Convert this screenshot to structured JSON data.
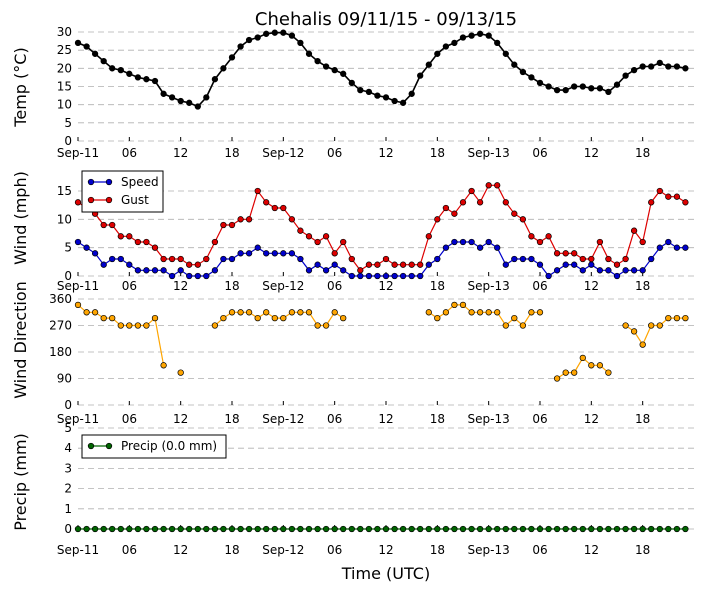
{
  "title": "Chehalis 09/11/15 - 09/13/15",
  "xlabel": "Time (UTC)",
  "x_tick_labels": [
    "Sep-11",
    "06",
    "12",
    "18",
    "Sep-12",
    "06",
    "12",
    "18",
    "Sep-13",
    "06",
    "12",
    "18"
  ],
  "colors": {
    "temp": "#000000",
    "speed": "#0000cc",
    "gust": "#dd0000",
    "direction": "#ffa500",
    "precip": "#006400"
  },
  "chart_data": [
    {
      "type": "line",
      "ylabel": "Temp (°C)",
      "ylim": [
        0,
        30
      ],
      "yticks": [
        "0",
        "5",
        "10",
        "15",
        "20",
        "25",
        "30"
      ],
      "grid": true,
      "x": [
        0,
        1,
        2,
        3,
        4,
        5,
        6,
        7,
        8,
        9,
        10,
        11,
        12,
        13,
        14,
        15,
        16,
        17,
        18,
        19,
        20,
        21,
        22,
        23,
        24,
        25,
        26,
        27,
        28,
        29,
        30,
        31,
        32,
        33,
        34,
        35,
        36,
        37,
        38,
        39,
        40,
        41,
        42,
        43,
        44,
        45,
        46,
        47,
        48,
        49,
        50,
        51,
        52,
        53,
        54,
        55,
        56,
        57,
        58,
        59,
        60,
        61,
        62,
        63,
        64,
        65,
        66,
        67,
        68,
        69,
        70,
        71
      ],
      "series": [
        {
          "values": [
            27,
            26,
            24,
            22,
            20,
            19.5,
            18.5,
            17.5,
            17,
            16.5,
            13,
            12,
            11,
            10.5,
            9.5,
            12,
            17,
            20,
            23,
            26,
            27.8,
            28.5,
            29.5,
            29.8,
            29.8,
            29,
            27,
            24,
            22,
            20.5,
            19.5,
            18.5,
            16,
            14,
            13.5,
            12.5,
            12,
            11,
            10.5,
            13,
            18,
            21,
            24,
            26,
            27,
            28.5,
            29,
            29.5,
            29,
            27,
            24,
            21,
            19,
            17.5,
            16,
            15,
            14,
            14,
            15,
            15,
            14.5,
            14.5,
            13.5,
            15.5,
            18,
            19.5,
            20.5,
            20.5,
            21.5,
            20.5,
            20.5,
            20
          ]
        }
      ]
    },
    {
      "type": "line",
      "ylabel": "Wind (mph)",
      "ylim": [
        0,
        18
      ],
      "yticks": [
        "0",
        "5",
        "10",
        "15"
      ],
      "grid": true,
      "legend_position": "top-left",
      "x": [
        0,
        1,
        2,
        3,
        4,
        5,
        6,
        7,
        8,
        9,
        10,
        11,
        12,
        13,
        14,
        15,
        16,
        17,
        18,
        19,
        20,
        21,
        22,
        23,
        24,
        25,
        26,
        27,
        28,
        29,
        30,
        31,
        32,
        33,
        34,
        35,
        36,
        37,
        38,
        39,
        40,
        41,
        42,
        43,
        44,
        45,
        46,
        47,
        48,
        49,
        50,
        51,
        52,
        53,
        54,
        55,
        56,
        57,
        58,
        59,
        60,
        61,
        62,
        63,
        64,
        65,
        66,
        67,
        68,
        69,
        70,
        71
      ],
      "series": [
        {
          "name": "Speed",
          "values": [
            6,
            5,
            4,
            2,
            3,
            3,
            2,
            1,
            1,
            1,
            1,
            0,
            1,
            0,
            0,
            0,
            1,
            3,
            3,
            4,
            4,
            5,
            4,
            4,
            4,
            4,
            3,
            1,
            2,
            1,
            2,
            1,
            0,
            0,
            0,
            0,
            0,
            0,
            0,
            0,
            0,
            2,
            3,
            5,
            6,
            6,
            6,
            5,
            6,
            5,
            2,
            3,
            3,
            3,
            2,
            0,
            1,
            2,
            2,
            1,
            2,
            1,
            1,
            0,
            1,
            1,
            1,
            3,
            5,
            6,
            5,
            5
          ]
        },
        {
          "name": "Gust",
          "values": [
            13,
            12,
            11,
            9,
            9,
            7,
            7,
            6,
            6,
            5,
            3,
            3,
            3,
            2,
            2,
            3,
            6,
            9,
            9,
            10,
            10,
            15,
            13,
            12,
            12,
            10,
            8,
            7,
            6,
            7,
            4,
            6,
            3,
            1,
            2,
            2,
            3,
            2,
            2,
            2,
            2,
            7,
            10,
            12,
            11,
            13,
            15,
            13,
            16,
            16,
            13,
            11,
            10,
            7,
            6,
            7,
            4,
            4,
            4,
            3,
            3,
            6,
            3,
            2,
            3,
            8,
            6,
            13,
            15,
            14,
            14,
            13
          ]
        }
      ]
    },
    {
      "type": "scatter",
      "ylabel": "Wind Direction",
      "ylim": [
        0,
        360
      ],
      "yticks": [
        "0",
        "90",
        "180",
        "270",
        "360"
      ],
      "grid": true,
      "x": [
        0,
        1,
        2,
        3,
        4,
        5,
        6,
        7,
        8,
        9,
        10,
        11,
        12,
        13,
        14,
        15,
        16,
        17,
        18,
        19,
        20,
        21,
        22,
        23,
        24,
        25,
        26,
        27,
        28,
        29,
        30,
        31,
        32,
        33,
        34,
        35,
        36,
        37,
        38,
        39,
        40,
        41,
        42,
        43,
        44,
        45,
        46,
        47,
        48,
        49,
        50,
        51,
        52,
        53,
        54,
        55,
        56,
        57,
        58,
        59,
        60,
        61,
        62,
        63,
        64,
        65,
        66,
        67,
        68,
        69,
        70,
        71
      ],
      "series": [
        {
          "values": [
            340,
            315,
            315,
            295,
            295,
            270,
            270,
            270,
            270,
            295,
            135,
            null,
            110,
            null,
            null,
            null,
            270,
            295,
            315,
            315,
            315,
            295,
            315,
            295,
            295,
            315,
            315,
            315,
            270,
            270,
            315,
            295,
            null,
            null,
            null,
            null,
            null,
            null,
            null,
            null,
            null,
            315,
            295,
            315,
            340,
            340,
            315,
            315,
            315,
            315,
            270,
            295,
            270,
            315,
            315,
            null,
            90,
            110,
            110,
            160,
            135,
            135,
            110,
            null,
            270,
            250,
            205,
            270,
            270,
            295,
            295,
            295
          ]
        }
      ]
    },
    {
      "type": "line",
      "ylabel": "Precip (mm)",
      "ylim": [
        0,
        5
      ],
      "yticks": [
        "0",
        "1",
        "2",
        "3",
        "4",
        "5"
      ],
      "grid": true,
      "legend_position": "top-left",
      "x": [
        0,
        1,
        2,
        3,
        4,
        5,
        6,
        7,
        8,
        9,
        10,
        11,
        12,
        13,
        14,
        15,
        16,
        17,
        18,
        19,
        20,
        21,
        22,
        23,
        24,
        25,
        26,
        27,
        28,
        29,
        30,
        31,
        32,
        33,
        34,
        35,
        36,
        37,
        38,
        39,
        40,
        41,
        42,
        43,
        44,
        45,
        46,
        47,
        48,
        49,
        50,
        51,
        52,
        53,
        54,
        55,
        56,
        57,
        58,
        59,
        60,
        61,
        62,
        63,
        64,
        65,
        66,
        67,
        68,
        69,
        70,
        71
      ],
      "series": [
        {
          "name": "Precip (0.0 mm)",
          "values": [
            0,
            0,
            0,
            0,
            0,
            0,
            0,
            0,
            0,
            0,
            0,
            0,
            0,
            0,
            0,
            0,
            0,
            0,
            0,
            0,
            0,
            0,
            0,
            0,
            0,
            0,
            0,
            0,
            0,
            0,
            0,
            0,
            0,
            0,
            0,
            0,
            0,
            0,
            0,
            0,
            0,
            0,
            0,
            0,
            0,
            0,
            0,
            0,
            0,
            0,
            0,
            0,
            0,
            0,
            0,
            0,
            0,
            0,
            0,
            0,
            0,
            0,
            0,
            0,
            0,
            0,
            0,
            0,
            0,
            0,
            0,
            0
          ]
        }
      ]
    }
  ]
}
